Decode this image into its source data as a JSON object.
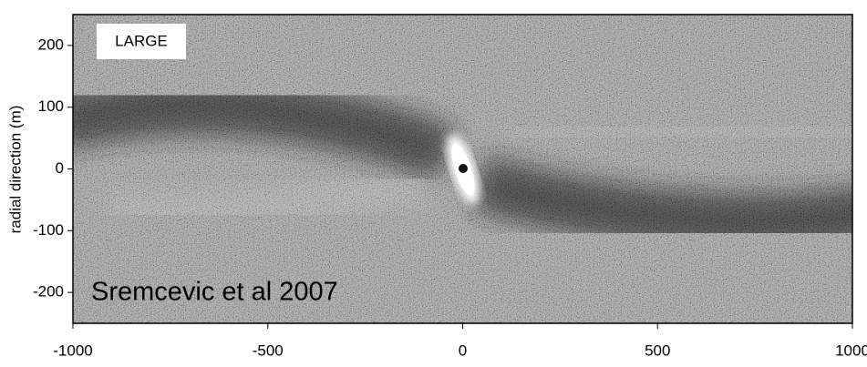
{
  "chart_data": {
    "type": "density-map",
    "ylabel": "radial direction (m)",
    "xlim": [
      -1000,
      1000
    ],
    "xticks": [
      -1000,
      -500,
      0,
      500,
      1000
    ],
    "ylim": [
      -250,
      250
    ],
    "yticks": [
      -200,
      -100,
      0,
      100,
      200
    ],
    "label": "LARGE",
    "annotation": "Sremcevic et al 2007"
  }
}
